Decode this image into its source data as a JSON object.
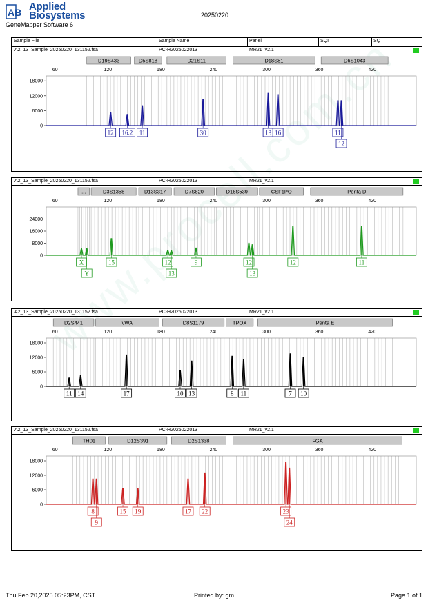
{
  "header": {
    "logo_mark": "AB",
    "logo_line1": "Applied",
    "logo_line2": "Biosystems",
    "app_name": "GeneMapper Software 6",
    "run_date": "20250220"
  },
  "columns": [
    "Sample File",
    "Sample Name",
    "Panel",
    "SQI",
    "SQ"
  ],
  "watermark": "www.procell.com.cn",
  "footer": {
    "date": "Thu Feb 20,2025 05:23PM, CST",
    "printed_by": "Printed by: gm",
    "page": "Page 1 of 1"
  },
  "colors": {
    "blue": "#1a1a9a",
    "green": "#1f9a1f",
    "black": "#000000",
    "red": "#cc2222",
    "sq_pass": "#22cc22"
  },
  "chart_data": [
    {
      "type": "line",
      "dye": "blue",
      "sample_file": "A2_13_Sample_20250220_131152.fsa",
      "sample_name": "PC-H2025022013",
      "panel": "MR21_v2.1",
      "xlim": [
        50,
        470
      ],
      "x_ticks": [
        "60",
        "120",
        "180",
        "240",
        "300",
        "360",
        "420"
      ],
      "ylim": [
        0,
        20000
      ],
      "y_ticks": [
        "18000",
        "12000",
        "6000",
        "0"
      ],
      "loci": [
        {
          "name": "D19S433",
          "start": 96,
          "end": 146
        },
        {
          "name": "D5S818",
          "start": 150,
          "end": 181
        },
        {
          "name": "D21S11",
          "start": 187,
          "end": 254
        },
        {
          "name": "D18S51",
          "start": 262,
          "end": 355
        },
        {
          "name": "D6S1043",
          "start": 362,
          "end": 438
        }
      ],
      "peaks": [
        {
          "x": 123,
          "h": 5400,
          "label": "12",
          "row": 0
        },
        {
          "x": 142,
          "h": 4500,
          "label": "16.2",
          "row": 0
        },
        {
          "x": 159,
          "h": 8000,
          "label": "11",
          "row": 0
        },
        {
          "x": 228,
          "h": 10500,
          "label": "30",
          "row": 0
        },
        {
          "x": 302,
          "h": 13000,
          "label": "13",
          "row": 0
        },
        {
          "x": 313,
          "h": 12500,
          "label": "16",
          "row": 0
        },
        {
          "x": 381,
          "h": 10000,
          "label": "11",
          "row": 0
        },
        {
          "x": 385,
          "h": 10000,
          "label": "12",
          "row": 1
        }
      ]
    },
    {
      "type": "line",
      "dye": "green",
      "sample_file": "A2_13_Sample_20250220_131152.fsa",
      "sample_name": "PC-H2025022013",
      "panel": "MR21_v2.1",
      "xlim": [
        50,
        470
      ],
      "x_ticks": [
        "60",
        "120",
        "180",
        "240",
        "300",
        "360",
        "420"
      ],
      "ylim": [
        0,
        32000
      ],
      "y_ticks": [
        "24000",
        "16000",
        "8000",
        "0"
      ],
      "loci": [
        {
          "name": "...",
          "start": 86,
          "end": 99
        },
        {
          "name": "D3S1358",
          "start": 101,
          "end": 152
        },
        {
          "name": "D13S317",
          "start": 155,
          "end": 192
        },
        {
          "name": "D7S820",
          "start": 195,
          "end": 241
        },
        {
          "name": "D16S539",
          "start": 243,
          "end": 290
        },
        {
          "name": "CSF1PO",
          "start": 292,
          "end": 342
        },
        {
          "name": "Penta D",
          "start": 350,
          "end": 455
        }
      ],
      "peaks": [
        {
          "x": 90,
          "h": 4300,
          "label": "X",
          "row": 0
        },
        {
          "x": 96,
          "h": 4300,
          "label": "Y",
          "row": 1
        },
        {
          "x": 124,
          "h": 11000,
          "label": "15",
          "row": 0
        },
        {
          "x": 188,
          "h": 3200,
          "label": "12",
          "row": 0
        },
        {
          "x": 192,
          "h": 3000,
          "label": "13",
          "row": 1
        },
        {
          "x": 220,
          "h": 4800,
          "label": "9",
          "row": 0
        },
        {
          "x": 280,
          "h": 8000,
          "label": "12",
          "row": 0
        },
        {
          "x": 284,
          "h": 7000,
          "label": "13",
          "row": 1
        },
        {
          "x": 330,
          "h": 19000,
          "label": "12",
          "row": 0
        },
        {
          "x": 408,
          "h": 19000,
          "label": "11",
          "row": 0
        }
      ]
    },
    {
      "type": "line",
      "dye": "black",
      "sample_file": "A2_13_Sample_20250220_131152.fsa",
      "sample_name": "PC-H2025022013",
      "panel": "MR21_v2.1",
      "xlim": [
        50,
        470
      ],
      "x_ticks": [
        "60",
        "120",
        "180",
        "240",
        "300",
        "360",
        "420"
      ],
      "ylim": [
        0,
        20000
      ],
      "y_ticks": [
        "18000",
        "12000",
        "6000",
        "0"
      ],
      "loci": [
        {
          "name": "D2S441",
          "start": 58,
          "end": 104
        },
        {
          "name": "vWA",
          "start": 106,
          "end": 178
        },
        {
          "name": "D8S1179",
          "start": 182,
          "end": 252
        },
        {
          "name": "TPOX",
          "start": 254,
          "end": 285
        },
        {
          "name": "Penta E",
          "start": 290,
          "end": 443
        }
      ],
      "peaks": [
        {
          "x": 76,
          "h": 3500,
          "label": "11",
          "row": 0
        },
        {
          "x": 89,
          "h": 4500,
          "label": "14",
          "row": 0
        },
        {
          "x": 141,
          "h": 13000,
          "label": "17",
          "row": 0
        },
        {
          "x": 202,
          "h": 6500,
          "label": "10",
          "row": 0
        },
        {
          "x": 215,
          "h": 10500,
          "label": "13",
          "row": 0
        },
        {
          "x": 261,
          "h": 12500,
          "label": "8",
          "row": 0
        },
        {
          "x": 274,
          "h": 11000,
          "label": "11",
          "row": 0
        },
        {
          "x": 327,
          "h": 13500,
          "label": "7",
          "row": 0
        },
        {
          "x": 342,
          "h": 12000,
          "label": "10",
          "row": 0
        }
      ]
    },
    {
      "type": "line",
      "dye": "red",
      "sample_file": "A2_13_Sample_20250220_131152.fsa",
      "sample_name": "PC-H2025022013",
      "panel": "MR21_v2.1",
      "xlim": [
        50,
        470
      ],
      "x_ticks": [
        "60",
        "120",
        "180",
        "240",
        "300",
        "360",
        "420"
      ],
      "ylim": [
        0,
        20000
      ],
      "y_ticks": [
        "18000",
        "12000",
        "6000",
        "0"
      ],
      "loci": [
        {
          "name": "TH01",
          "start": 80,
          "end": 117
        },
        {
          "name": "D12S391",
          "start": 121,
          "end": 187
        },
        {
          "name": "D2S1338",
          "start": 192,
          "end": 254
        },
        {
          "name": "FGA",
          "start": 262,
          "end": 454
        }
      ],
      "peaks": [
        {
          "x": 103,
          "h": 10500,
          "label": "8",
          "row": 0
        },
        {
          "x": 107,
          "h": 10500,
          "label": "9",
          "row": 1
        },
        {
          "x": 137,
          "h": 6500,
          "label": "15",
          "row": 0
        },
        {
          "x": 154,
          "h": 6500,
          "label": "19",
          "row": 0
        },
        {
          "x": 211,
          "h": 10500,
          "label": "17",
          "row": 0
        },
        {
          "x": 230,
          "h": 13000,
          "label": "22",
          "row": 0
        },
        {
          "x": 322,
          "h": 17500,
          "label": "23",
          "row": 0
        },
        {
          "x": 326,
          "h": 15000,
          "label": "24",
          "row": 1
        }
      ]
    }
  ]
}
